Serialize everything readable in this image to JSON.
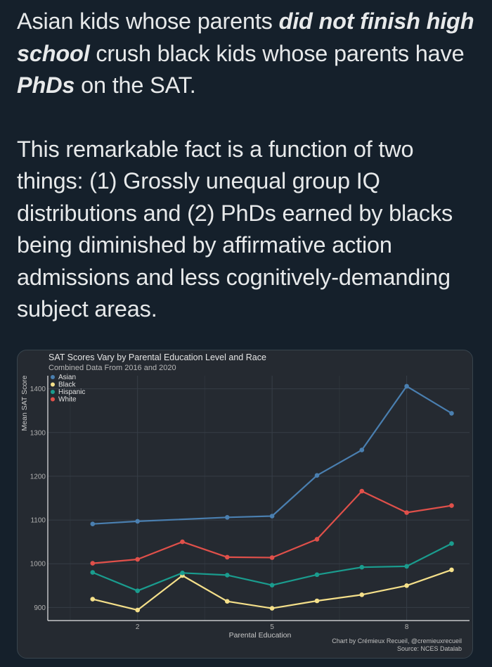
{
  "tweet": {
    "p1": {
      "t1": "Asian kids whose parents ",
      "e1": "did not finish high school",
      "t2": " crush black kids whose parents have ",
      "e2": "PhDs",
      "t3": " on the SAT."
    },
    "p2": "This remarkable fact is a function of two things: (1) Grossly unequal group IQ distributions and (2) PhDs earned by blacks being diminished by affirmative action admissions and less cognitively-demanding subject areas."
  },
  "chart_data": {
    "type": "line",
    "title": "SAT Scores Vary by Parental Education Level and Race",
    "subtitle": "Combined Data From 2016 and 2020",
    "xlabel": "Parental Education",
    "ylabel": "Mean SAT Score",
    "x": [
      1,
      2,
      3,
      4,
      5,
      6,
      7,
      8,
      9
    ],
    "xticks": [
      2,
      5,
      8
    ],
    "xlim": [
      0.0,
      9.4
    ],
    "yticks": [
      900,
      1000,
      1100,
      1200,
      1300,
      1400
    ],
    "ylim": [
      870,
      1430
    ],
    "grid": true,
    "legend_position": "top-left",
    "series": [
      {
        "name": "Asian",
        "color": "#4a7fb0",
        "values": [
          1091,
          1097,
          null,
          1106,
          1109,
          1202,
          1260,
          1406,
          1344
        ]
      },
      {
        "name": "Black",
        "color": "#f5e08a",
        "values": [
          919,
          894,
          973,
          914,
          898,
          915,
          929,
          950,
          986
        ]
      },
      {
        "name": "Hispanic",
        "color": "#1a9c8e",
        "values": [
          980,
          938,
          979,
          974,
          951,
          975,
          992,
          994,
          1046
        ]
      },
      {
        "name": "White",
        "color": "#e0504a",
        "values": [
          1001,
          1010,
          1050,
          1015,
          1014,
          1056,
          1166,
          1117,
          1133
        ]
      }
    ],
    "caption": "Chart by Crémieux Recueil, @cremieuxrecueil",
    "source": "Source: NCES Datalab"
  }
}
